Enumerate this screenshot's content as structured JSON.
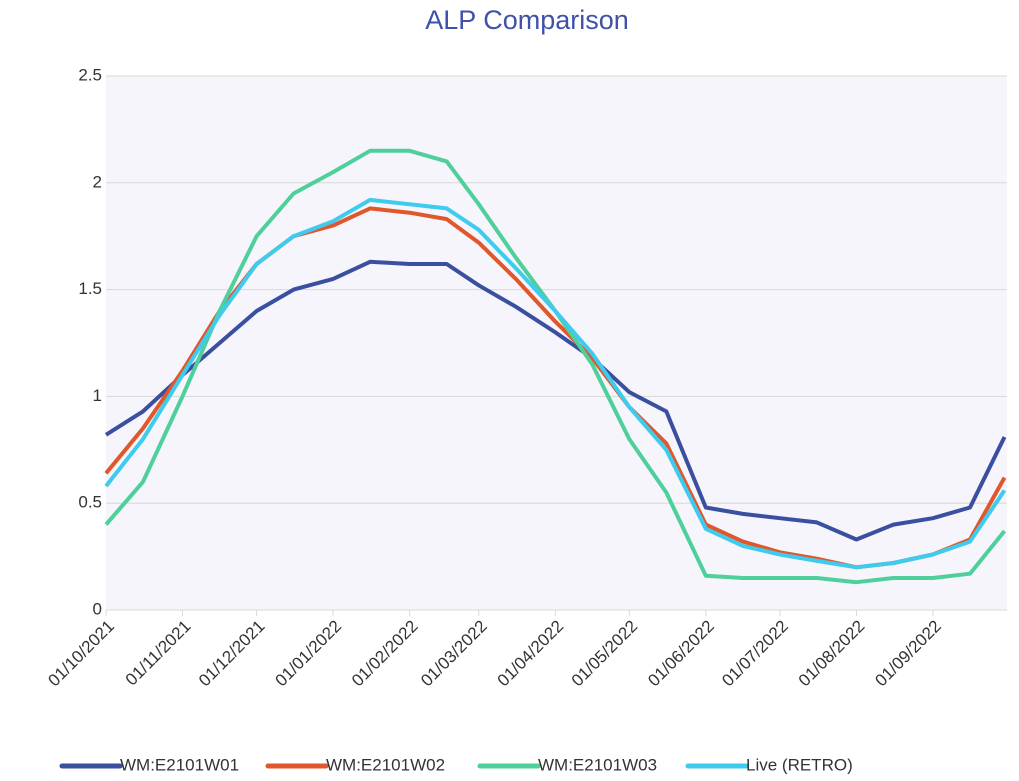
{
  "chart_data": {
    "type": "line",
    "title": "ALP Comparison",
    "x": [
      "01/10/2021",
      "16/10/2021",
      "01/11/2021",
      "16/11/2021",
      "01/12/2021",
      "16/12/2021",
      "01/01/2022",
      "16/01/2022",
      "01/02/2022",
      "16/02/2022",
      "01/03/2022",
      "16/03/2022",
      "01/04/2022",
      "16/04/2022",
      "01/05/2022",
      "16/05/2022",
      "01/06/2022",
      "16/06/2022",
      "01/07/2022",
      "16/07/2022",
      "01/08/2022",
      "16/08/2022",
      "01/09/2022",
      "16/09/2022",
      "30/09/2022"
    ],
    "series": [
      {
        "name": "WM:E2101W01",
        "color": "#3a4f9f",
        "values": [
          0.82,
          0.93,
          1.1,
          1.25,
          1.4,
          1.5,
          1.55,
          1.63,
          1.62,
          1.62,
          1.52,
          1.42,
          1.3,
          1.18,
          1.02,
          0.93,
          0.48,
          0.45,
          0.43,
          0.41,
          0.33,
          0.4,
          0.43,
          0.48,
          0.81
        ]
      },
      {
        "name": "WM:E2101W02",
        "color": "#e0572b",
        "values": [
          0.64,
          0.85,
          1.12,
          1.4,
          1.62,
          1.75,
          1.8,
          1.88,
          1.86,
          1.83,
          1.72,
          1.55,
          1.35,
          1.18,
          0.95,
          0.78,
          0.4,
          0.32,
          0.27,
          0.24,
          0.2,
          0.22,
          0.26,
          0.33,
          0.62
        ]
      },
      {
        "name": "WM:E2101W03",
        "color": "#4fcf9b",
        "values": [
          0.4,
          0.6,
          1.0,
          1.4,
          1.75,
          1.95,
          2.05,
          2.15,
          2.15,
          2.1,
          1.9,
          1.65,
          1.4,
          1.15,
          0.8,
          0.55,
          0.16,
          0.15,
          0.15,
          0.15,
          0.13,
          0.15,
          0.15,
          0.17,
          0.37
        ]
      },
      {
        "name": "Live (RETRO)",
        "color": "#3fcbee",
        "values": [
          0.58,
          0.8,
          1.1,
          1.38,
          1.62,
          1.75,
          1.82,
          1.92,
          1.9,
          1.88,
          1.78,
          1.6,
          1.4,
          1.2,
          0.95,
          0.75,
          0.38,
          0.3,
          0.26,
          0.23,
          0.2,
          0.22,
          0.26,
          0.32,
          0.56
        ]
      }
    ],
    "xlim": [
      "01/10/2021",
      "01/10/2022"
    ],
    "xticks": [
      "01/10/2021",
      "01/11/2021",
      "01/12/2021",
      "01/01/2022",
      "01/02/2022",
      "01/03/2022",
      "01/04/2022",
      "01/05/2022",
      "01/06/2022",
      "01/07/2022",
      "01/08/2022",
      "01/09/2022"
    ],
    "ylim": [
      0,
      2.5
    ],
    "yticks": [
      0,
      0.5,
      1,
      1.5,
      2,
      2.5
    ],
    "grid": true,
    "legend": "bottom"
  }
}
